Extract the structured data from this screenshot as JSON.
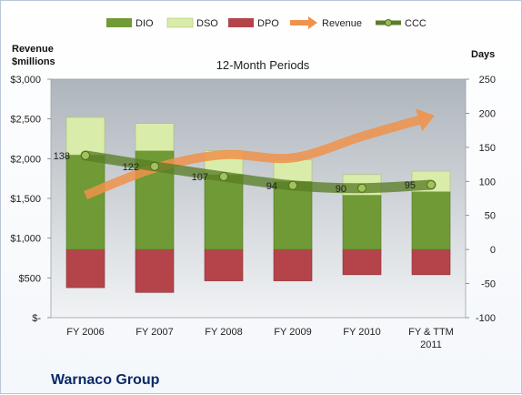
{
  "chart_data": {
    "type": "bar",
    "title": "12-Month Periods",
    "company": "Warnaco Group",
    "y_left_label": [
      "Revenue",
      "$millions"
    ],
    "y_right_label": "Days",
    "categories": [
      "FY 2006",
      "FY 2007",
      "FY 2008",
      "FY 2009",
      "FY 2010",
      "FY & TTM 2011"
    ],
    "y_left": {
      "min": 0,
      "max": 3000,
      "step": 500,
      "ticks": [
        "$-",
        "$500",
        "$1,000",
        "$1,500",
        "$2,000",
        "$2,500",
        "$3,000"
      ]
    },
    "y_right": {
      "min": -100,
      "max": 250,
      "step": 50,
      "ticks": [
        "-100",
        "-50",
        "0",
        "50",
        "100",
        "150",
        "200",
        "250"
      ]
    },
    "series": [
      {
        "name": "DIO",
        "axis": "right",
        "kind": "stacked-bar",
        "color": "#6f9a35",
        "values": [
          139,
          145,
          110,
          100,
          80,
          85
        ]
      },
      {
        "name": "DSO",
        "axis": "right",
        "kind": "stacked-bar",
        "color": "#d9ecaa",
        "values": [
          55,
          40,
          35,
          32,
          30,
          30
        ]
      },
      {
        "name": "DPO",
        "axis": "right",
        "kind": "negative-bar",
        "color": "#b5444a",
        "values": [
          -56,
          -63,
          -46,
          -46,
          -37,
          -37
        ]
      },
      {
        "name": "Revenue",
        "axis": "left",
        "kind": "arrow-line",
        "color": "#f0924a",
        "values": [
          1540,
          1880,
          2050,
          2010,
          2280,
          2530
        ]
      },
      {
        "name": "CCC",
        "axis": "right",
        "kind": "line-markers",
        "color": "#5a7d28",
        "values": [
          138,
          122,
          107,
          94,
          90,
          95
        ],
        "labels": [
          "138",
          "122",
          "107",
          "94",
          "90",
          "95"
        ]
      }
    ],
    "legend_position": "top",
    "grid": false
  }
}
